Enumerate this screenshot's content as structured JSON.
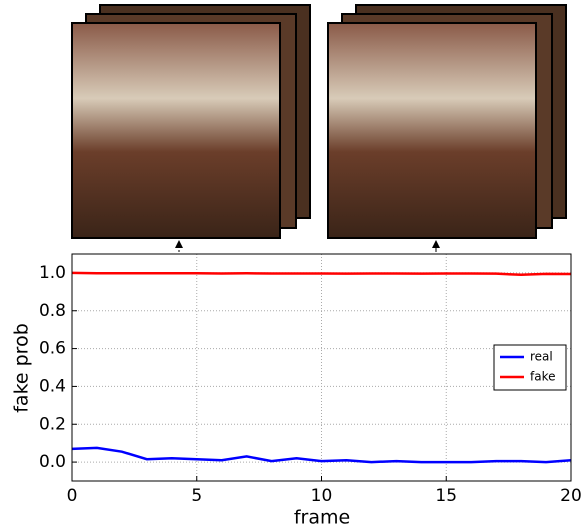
{
  "chart_data": {
    "type": "line",
    "x_label": "frame",
    "y_label": "fake prob",
    "x": [
      0,
      1,
      2,
      3,
      4,
      5,
      6,
      7,
      8,
      9,
      10,
      11,
      12,
      13,
      14,
      15,
      16,
      17,
      18,
      19,
      20
    ],
    "series": [
      {
        "name": "real",
        "color": "#0000ff",
        "values": [
          0.07,
          0.075,
          0.055,
          0.015,
          0.02,
          0.015,
          0.01,
          0.03,
          0.005,
          0.02,
          0.005,
          0.01,
          0.0,
          0.005,
          0.0,
          0.0,
          0.0,
          0.005,
          0.005,
          0.0,
          0.01
        ]
      },
      {
        "name": "fake",
        "color": "#ff0000",
        "values": [
          1.0,
          0.998,
          0.998,
          0.998,
          0.998,
          0.998,
          0.997,
          0.998,
          0.997,
          0.997,
          0.997,
          0.996,
          0.997,
          0.997,
          0.996,
          0.997,
          0.997,
          0.996,
          0.99,
          0.995,
          0.994
        ]
      }
    ],
    "xlim": [
      0,
      20
    ],
    "xticks": [
      0,
      5,
      10,
      15,
      20
    ],
    "ylim": [
      -0.1,
      1.1
    ],
    "yticks": [
      {
        "value": 0,
        "label": "0.0"
      },
      0.2,
      0.4,
      0.6,
      0.8,
      {
        "value": 1,
        "label": "1.0"
      }
    ],
    "grid": true,
    "legend": "right"
  }
}
